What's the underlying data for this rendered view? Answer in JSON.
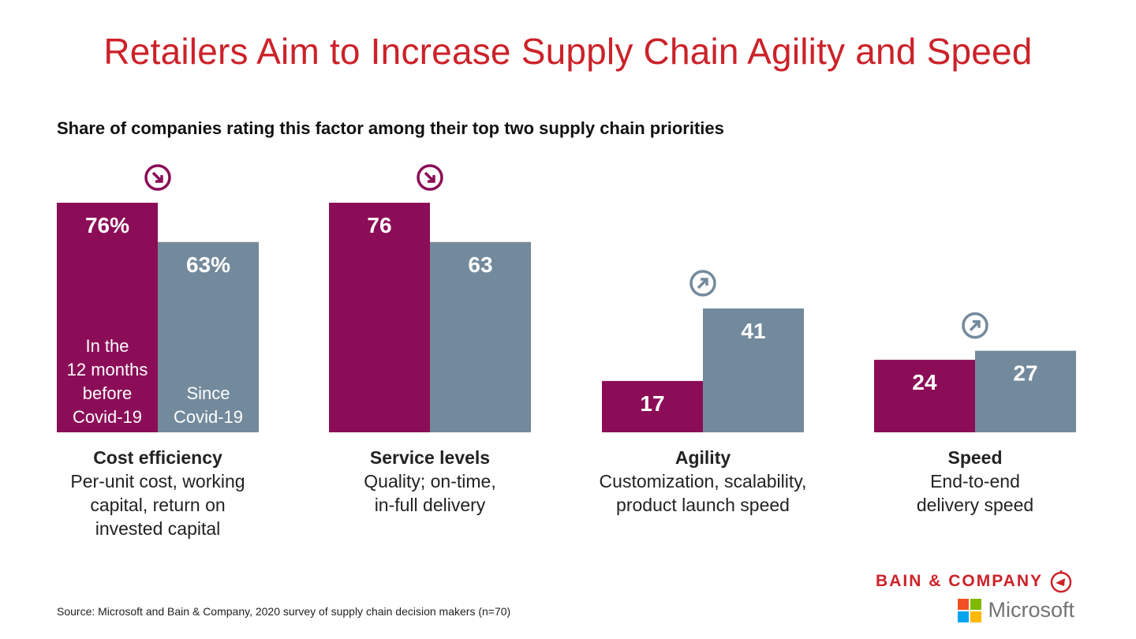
{
  "chart_data": {
    "type": "bar",
    "title": "Retailers Aim to Increase Supply Chain Agility and Speed",
    "subtitle": "Share of companies rating this factor among their top two supply chain priorities",
    "categories": [
      {
        "name": "Cost efficiency",
        "desc": [
          "Per-unit cost, working",
          "capital, return on",
          "invested capital"
        ]
      },
      {
        "name": "Service levels",
        "desc": [
          "Quality; on-time,",
          "in-full delivery"
        ]
      },
      {
        "name": "Agility",
        "desc": [
          "Customization, scalability,",
          "product launch speed"
        ]
      },
      {
        "name": "Speed",
        "desc": [
          "End-to-end",
          "delivery speed"
        ]
      }
    ],
    "series": [
      {
        "name": "In the 12 months before Covid-19",
        "name_lines": [
          "In the",
          "12 months",
          "before",
          "Covid-19"
        ],
        "values": [
          76,
          76,
          17,
          24
        ],
        "color": "#8B0D57"
      },
      {
        "name": "Since Covid-19",
        "name_lines": [
          "Since",
          "Covid-19"
        ],
        "values": [
          63,
          63,
          41,
          27
        ],
        "color": "#738A9C"
      }
    ],
    "value_labels": [
      [
        "76%",
        "76",
        "17",
        "24"
      ],
      [
        "63%",
        "63",
        "41",
        "27"
      ]
    ],
    "trend_icons": [
      {
        "icon": "arrow-down-right-circle-icon",
        "series": 0,
        "color": "#8B0D57"
      },
      {
        "icon": "arrow-down-right-circle-icon",
        "series": 0,
        "color": "#8B0D57"
      },
      {
        "icon": "arrow-up-right-circle-icon",
        "series": 1,
        "color": "#738A9C"
      },
      {
        "icon": "arrow-up-right-circle-icon",
        "series": 1,
        "color": "#738A9C"
      }
    ],
    "ylim": [
      0,
      100
    ],
    "grid": false,
    "legend": "inside first group bars"
  },
  "footer": {
    "source": "Source: Microsoft and Bain & Company, 2020 survey of supply chain decision makers (n=70)",
    "bain": "BAIN & COMPANY",
    "microsoft": "Microsoft"
  },
  "colors": {
    "title": "#CC2229",
    "purple": "#8B0D57",
    "gray": "#738A9C"
  }
}
